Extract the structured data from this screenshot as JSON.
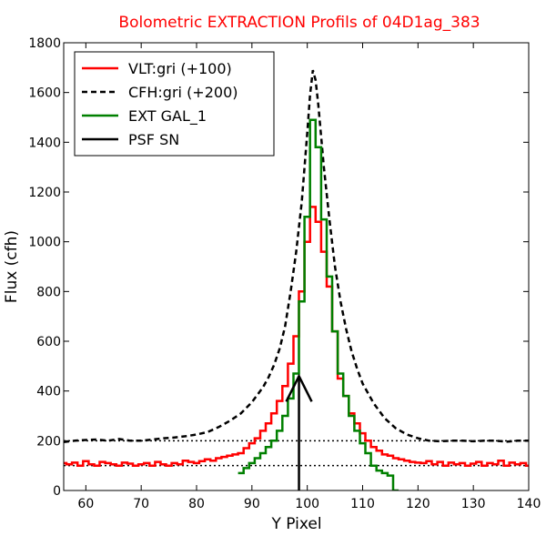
{
  "chart_data": {
    "type": "line",
    "title": "Bolometric EXTRACTION Profils of 04D1ag_383",
    "xlabel": "Y Pixel",
    "ylabel": "Flux (cfh)",
    "xlim": [
      56,
      140
    ],
    "ylim": [
      0,
      1800
    ],
    "xticks": [
      "60",
      "70",
      "80",
      "90",
      "100",
      "110",
      "120",
      "130",
      "140"
    ],
    "yticks": [
      "0",
      "200",
      "400",
      "600",
      "800",
      "1000",
      "1200",
      "1400",
      "1600",
      "1800"
    ],
    "legend_position": "top-left",
    "reference_lines": [
      100,
      200
    ],
    "colors": {
      "vlt": "#ff0000",
      "cfh": "#000000",
      "ext": "#008000",
      "psf": "#000000",
      "title": "#ff0000"
    },
    "series": [
      {
        "name": "VLT:gri (+100)",
        "style": "steps",
        "x": [
          56,
          57,
          58,
          59,
          60,
          61,
          62,
          63,
          64,
          65,
          66,
          67,
          68,
          69,
          70,
          71,
          72,
          73,
          74,
          75,
          76,
          77,
          78,
          79,
          80,
          81,
          82,
          83,
          84,
          85,
          86,
          87,
          88,
          89,
          90,
          91,
          92,
          93,
          94,
          95,
          96,
          97,
          98,
          99,
          100,
          101,
          102,
          103,
          104,
          105,
          106,
          107,
          108,
          109,
          110,
          111,
          112,
          113,
          114,
          115,
          116,
          117,
          118,
          119,
          120,
          121,
          122,
          123,
          124,
          125,
          126,
          127,
          128,
          129,
          130,
          131,
          132,
          133,
          134,
          135,
          136,
          137,
          138,
          139,
          140
        ],
        "y": [
          110,
          105,
          112,
          100,
          118,
          105,
          100,
          115,
          110,
          105,
          100,
          112,
          108,
          100,
          105,
          110,
          100,
          115,
          105,
          100,
          110,
          105,
          120,
          115,
          110,
          118,
          125,
          120,
          130,
          135,
          140,
          145,
          150,
          170,
          190,
          210,
          240,
          270,
          310,
          360,
          420,
          510,
          620,
          800,
          1000,
          1140,
          1080,
          960,
          820,
          640,
          450,
          380,
          310,
          270,
          230,
          200,
          175,
          160,
          145,
          140,
          130,
          125,
          120,
          115,
          112,
          110,
          118,
          105,
          115,
          100,
          112,
          105,
          110,
          100,
          108,
          115,
          100,
          110,
          105,
          120,
          100,
          112,
          105,
          110,
          100
        ]
      },
      {
        "name": "CFH:gri (+200)",
        "style": "dashed",
        "x": [
          56,
          58,
          60,
          62,
          64,
          66,
          68,
          70,
          72,
          74,
          76,
          78,
          80,
          82,
          84,
          86,
          88,
          90,
          91,
          92,
          93,
          94,
          95,
          96,
          97,
          98,
          99,
          100,
          100.5,
          101,
          101.5,
          102,
          103,
          104,
          105,
          106,
          107,
          108,
          109,
          110,
          112,
          114,
          116,
          118,
          120,
          122,
          124,
          126,
          128,
          130,
          132,
          134,
          136,
          138,
          140
        ],
        "y": [
          195,
          200,
          203,
          205,
          200,
          207,
          200,
          200,
          205,
          210,
          213,
          218,
          225,
          235,
          255,
          280,
          310,
          355,
          385,
          415,
          455,
          505,
          570,
          660,
          800,
          960,
          1160,
          1440,
          1590,
          1690,
          1650,
          1550,
          1300,
          1090,
          900,
          760,
          650,
          560,
          490,
          430,
          350,
          290,
          250,
          225,
          210,
          200,
          198,
          200,
          200,
          198,
          200,
          200,
          196,
          200,
          200
        ]
      },
      {
        "name": "EXT GAL_1",
        "style": "steps",
        "x": [
          88,
          89,
          90,
          91,
          92,
          93,
          94,
          95,
          96,
          97,
          98,
          99,
          100,
          101,
          102,
          103,
          104,
          105,
          106,
          107,
          108,
          109,
          110,
          111,
          112,
          113,
          114,
          115,
          116
        ],
        "y": [
          70,
          90,
          110,
          130,
          150,
          175,
          200,
          240,
          300,
          370,
          470,
          760,
          1100,
          1490,
          1380,
          1090,
          860,
          640,
          470,
          380,
          300,
          240,
          190,
          150,
          100,
          80,
          70,
          60,
          0
        ]
      },
      {
        "name": "PSF SN",
        "style": "line",
        "x": [
          98.5,
          98.5
        ],
        "y": [
          0,
          460
        ]
      }
    ]
  }
}
